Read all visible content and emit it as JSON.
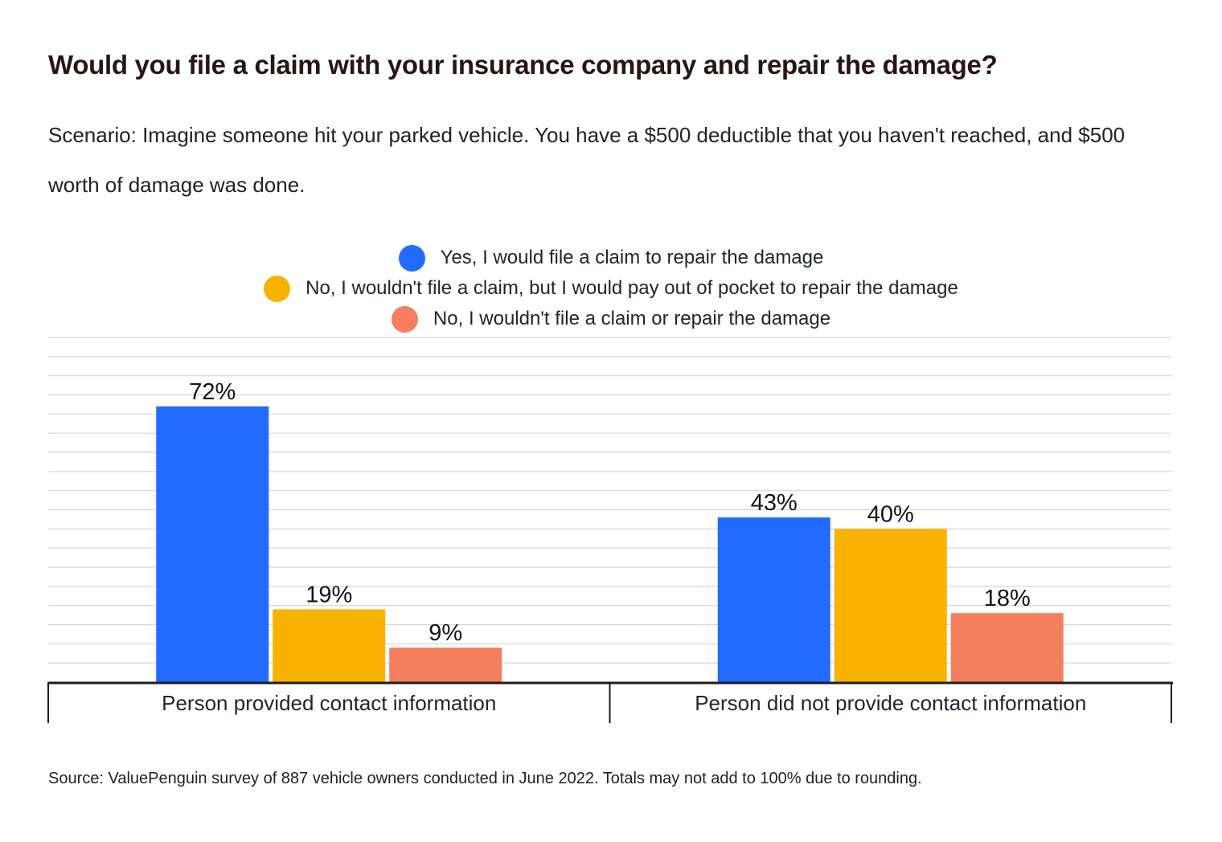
{
  "title": "Would you file a claim with your insurance company and repair the damage?",
  "subtitle": "Scenario: Imagine someone hit your parked vehicle. You have a $500 deductible that you haven't reached, and $500 worth of damage was done.",
  "source": "Source: ValuePenguin survey of 887 vehicle owners conducted in June 2022. Totals may not add to 100% due to rounding.",
  "chart_data": {
    "type": "bar",
    "title": "Would you file a claim with your insurance company and repair the damage?",
    "xlabel": "",
    "ylabel": "",
    "ylim": [
      0,
      90
    ],
    "grid": true,
    "legend_position": "top-center",
    "categories": [
      "Person provided contact information",
      "Person did not provide contact information"
    ],
    "series": [
      {
        "name": "Yes, I would file a claim to repair the damage",
        "color": "#216bff",
        "values": [
          72,
          43
        ],
        "labels": [
          "72%",
          "43%"
        ]
      },
      {
        "name": "No, I wouldn't file a claim, but I would pay out of pocket to repair the damage",
        "color": "#f9b200",
        "values": [
          19,
          40
        ],
        "labels": [
          "19%",
          "40%"
        ]
      },
      {
        "name": "No, I wouldn't file a claim or repair the damage",
        "color": "#f47f5f",
        "values": [
          9,
          18
        ],
        "labels": [
          "9%",
          "18%"
        ]
      }
    ]
  }
}
